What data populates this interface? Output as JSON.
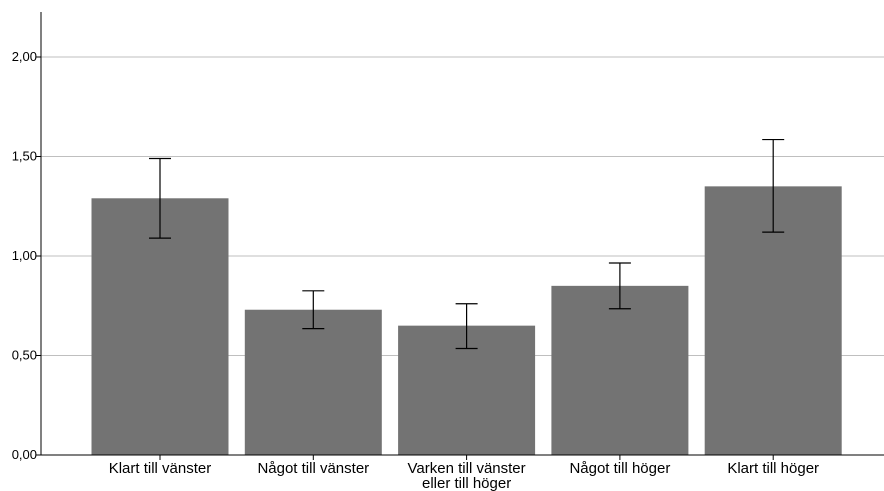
{
  "chart_data": {
    "type": "bar",
    "categories": [
      [
        "Klart till vänster"
      ],
      [
        "Något till vänster"
      ],
      [
        "Varken till vänster",
        "eller till höger"
      ],
      [
        "Något till höger"
      ],
      [
        "Klart till höger"
      ]
    ],
    "values": [
      1.29,
      0.73,
      0.65,
      0.85,
      1.35
    ],
    "error_low": [
      1.09,
      0.635,
      0.535,
      0.735,
      1.12
    ],
    "error_high": [
      1.49,
      0.825,
      0.76,
      0.965,
      1.585
    ],
    "yticks": [
      "0,00",
      "0,50",
      "1,00",
      "1,50",
      "2,00"
    ],
    "ytick_values": [
      0,
      0.5,
      1.0,
      1.5,
      2.0
    ],
    "ylim": [
      0,
      2.0
    ],
    "grid": true,
    "bar_color": "#737373",
    "grid_color": "#bfbfbf",
    "axis_color": "#000000"
  }
}
